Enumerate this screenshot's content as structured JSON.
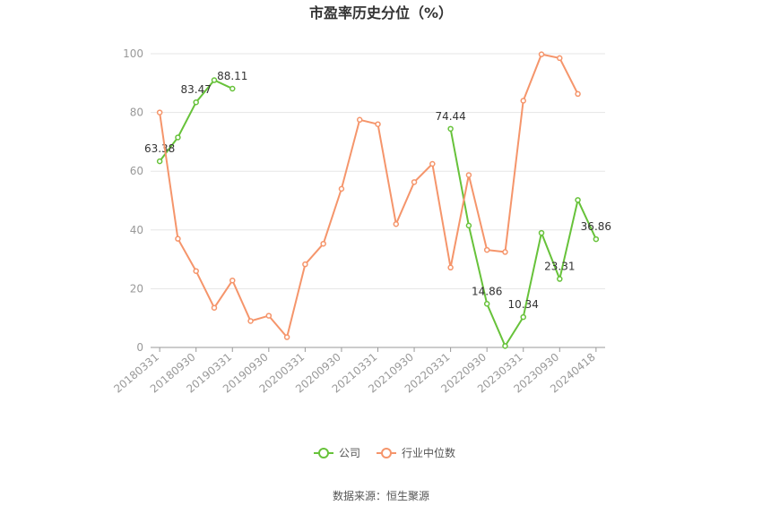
{
  "chart_data": {
    "type": "line",
    "title": "市盈率历史分位（%）",
    "ylim": [
      0,
      100
    ],
    "y_ticks": [
      0,
      20,
      40,
      60,
      80,
      100
    ],
    "x_tick_labels": [
      "20180331",
      "20180930",
      "20190331",
      "20190930",
      "20200331",
      "20200930",
      "20210331",
      "20210930",
      "20220331",
      "20220930",
      "20230331",
      "20230930",
      "20240418"
    ],
    "grid": "horizontal",
    "legend_position": "bottom",
    "series": [
      {
        "name": "公司",
        "color": "#67c23a",
        "values": [
          63.38,
          71.5,
          83.47,
          91.0,
          88.11,
          null,
          null,
          null,
          null,
          null,
          null,
          null,
          null,
          null,
          null,
          null,
          74.44,
          41.5,
          14.86,
          0.5,
          10.34,
          39.0,
          23.31,
          50.2,
          36.86
        ],
        "labels": {
          "0": "63.38",
          "2": "83.47",
          "4": "88.11",
          "16": "74.44",
          "18": "14.86",
          "20": "10.34",
          "22": "23.31",
          "24": "36.86"
        }
      },
      {
        "name": "行业中位数",
        "color": "#f5956b",
        "values": [
          80.0,
          37.0,
          26.0,
          13.5,
          22.8,
          9.0,
          10.8,
          3.5,
          28.3,
          35.3,
          54.0,
          77.5,
          76.0,
          42.0,
          56.3,
          62.5,
          27.2,
          58.7,
          33.2,
          32.5,
          84.0,
          99.8,
          98.5,
          86.3,
          null
        ]
      }
    ]
  },
  "source_text": "数据来源：恒生聚源"
}
